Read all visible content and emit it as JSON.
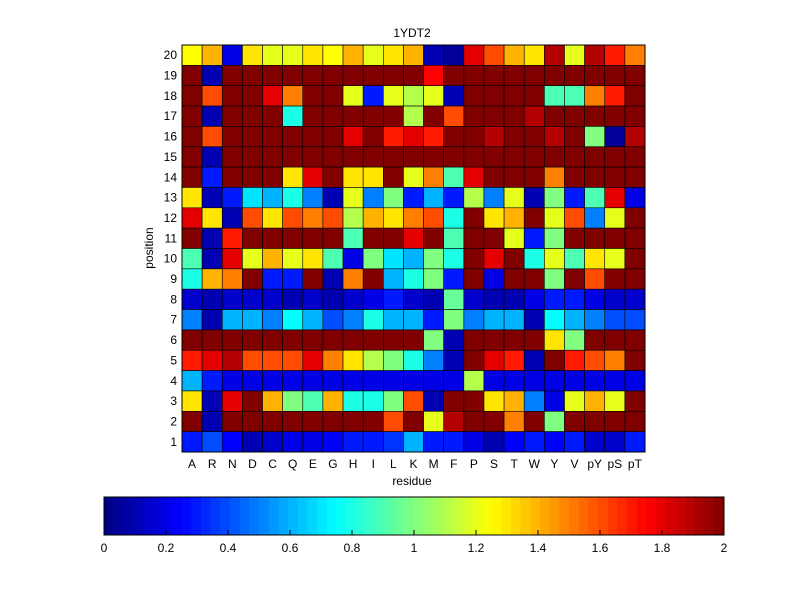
{
  "chart_data": {
    "type": "heatmap",
    "title": "1YDT2",
    "xlabel": "residue",
    "ylabel": "position",
    "x_categories": [
      "A",
      "R",
      "N",
      "D",
      "C",
      "Q",
      "E",
      "G",
      "H",
      "I",
      "L",
      "K",
      "M",
      "F",
      "P",
      "S",
      "T",
      "W",
      "Y",
      "V",
      "pY",
      "pS",
      "pT"
    ],
    "y_categories": [
      "20",
      "19",
      "18",
      "17",
      "16",
      "15",
      "14",
      "13",
      "12",
      "11",
      "10",
      "9",
      "8",
      "7",
      "6",
      "5",
      "4",
      "3",
      "2",
      "1"
    ],
    "colormap": "jet",
    "color_range": [
      0,
      2
    ],
    "colorbar_ticks": [
      "0",
      "0.2",
      "0.4",
      "0.6",
      "0.8",
      "1",
      "1.2",
      "1.4",
      "1.6",
      "1.8",
      "2"
    ],
    "values": [
      [
        1.25,
        1.4,
        0.2,
        1.3,
        1.2,
        1.2,
        1.3,
        1.25,
        1.4,
        1.2,
        1.3,
        1.4,
        0.1,
        0.05,
        1.8,
        1.6,
        1.4,
        1.3,
        1.9,
        1.2,
        1.9,
        1.7,
        1.5
      ],
      [
        2,
        0.1,
        2,
        2,
        2,
        2,
        2,
        2,
        2,
        2,
        2,
        2,
        1.75,
        2,
        2,
        2,
        2,
        2,
        2,
        2,
        2,
        2,
        2
      ],
      [
        2,
        1.6,
        2,
        2,
        1.8,
        1.5,
        2,
        2,
        1.2,
        0.3,
        1.2,
        1.1,
        1.2,
        0.1,
        2,
        2,
        2,
        2,
        0.9,
        0.9,
        1.5,
        1.7,
        2
      ],
      [
        2,
        0.1,
        2,
        2,
        2,
        0.8,
        2,
        2,
        2,
        2,
        2,
        1.1,
        2,
        1.6,
        2,
        2,
        2,
        1.9,
        2,
        2,
        2,
        2,
        2
      ],
      [
        2,
        1.6,
        2,
        2,
        2,
        2,
        2,
        2,
        1.8,
        2,
        1.7,
        1.8,
        1.7,
        2,
        2,
        1.9,
        2,
        2,
        1.9,
        2,
        1.0,
        0.05,
        1.9
      ],
      [
        2,
        0.1,
        2,
        2,
        2,
        2,
        2,
        2,
        2,
        2,
        2,
        2,
        2,
        2,
        2,
        2,
        2,
        2,
        2,
        2,
        2,
        2,
        2
      ],
      [
        2,
        0.3,
        2,
        2,
        2,
        1.3,
        1.8,
        2,
        1.3,
        1.3,
        2,
        1.2,
        1.5,
        0.9,
        1.8,
        2,
        2,
        2,
        1.5,
        2,
        2,
        2,
        2
      ],
      [
        1.3,
        0.1,
        0.3,
        0.7,
        0.6,
        0.8,
        0.5,
        0.1,
        1.2,
        0.5,
        1.0,
        0.3,
        0.6,
        0.3,
        1.1,
        0.5,
        1.2,
        0.1,
        1.0,
        0.3,
        0.9,
        1.8,
        0.2
      ],
      [
        1.8,
        1.3,
        0.1,
        1.6,
        1.3,
        1.6,
        1.5,
        1.6,
        1.1,
        1.4,
        1.3,
        1.5,
        1.6,
        0.8,
        2,
        1.3,
        1.4,
        2,
        1.2,
        1.6,
        0.5,
        1.2,
        2
      ],
      [
        2,
        0.1,
        1.7,
        2,
        2,
        2,
        2,
        2,
        0.9,
        2,
        2,
        1.8,
        2,
        0.9,
        2,
        2,
        1.2,
        0.3,
        1.0,
        2,
        2,
        2,
        2
      ],
      [
        0.9,
        0.1,
        1.8,
        1.2,
        1.4,
        1.2,
        1.3,
        0.9,
        0.2,
        1.0,
        0.7,
        0.6,
        1.0,
        0.8,
        2,
        1.8,
        2,
        0.8,
        1.2,
        0.9,
        1.3,
        1.2,
        2
      ],
      [
        0.8,
        1.4,
        1.5,
        2,
        0.3,
        0.3,
        2,
        0.1,
        1.5,
        2,
        0.6,
        0.8,
        1.0,
        0.3,
        2,
        0.2,
        2,
        2,
        1.0,
        2,
        1.6,
        2,
        2
      ],
      [
        0.15,
        0.1,
        0.15,
        0.15,
        0.15,
        0.1,
        0.15,
        0.1,
        0.15,
        0.2,
        0.3,
        0.15,
        0.1,
        0.95,
        0.15,
        0.1,
        0.1,
        0.2,
        0.3,
        0.3,
        0.2,
        0.15,
        0.15
      ],
      [
        0.5,
        0.1,
        0.6,
        0.6,
        0.5,
        0.75,
        0.6,
        0.4,
        0.5,
        0.8,
        0.6,
        0.6,
        0.3,
        1.0,
        0.5,
        0.6,
        0.6,
        0.1,
        0.75,
        0.6,
        0.5,
        0.4,
        0.4
      ],
      [
        2,
        2,
        2,
        2,
        2,
        2,
        2,
        2,
        2,
        2,
        2,
        2,
        1.0,
        0.1,
        2,
        2,
        2,
        2,
        1.3,
        1.0,
        2,
        2,
        2
      ],
      [
        1.7,
        1.8,
        1.9,
        1.6,
        1.6,
        1.6,
        1.8,
        1.5,
        1.3,
        1.1,
        1.0,
        0.8,
        0.5,
        0.1,
        2,
        1.8,
        1.7,
        0.1,
        2,
        1.7,
        1.6,
        1.5,
        2
      ],
      [
        0.6,
        0.3,
        0.2,
        0.2,
        0.2,
        0.2,
        0.2,
        0.2,
        0.2,
        0.2,
        0.2,
        0.2,
        0.2,
        0.2,
        1.1,
        0.2,
        0.2,
        0.2,
        0.2,
        0.2,
        0.2,
        0.2,
        0.2
      ],
      [
        1.3,
        0.1,
        1.8,
        2,
        1.4,
        1.0,
        0.9,
        1.4,
        0.8,
        0.8,
        1.0,
        1.6,
        0.1,
        2,
        2,
        1.3,
        1.4,
        0.5,
        0.2,
        1.2,
        1.4,
        1.2,
        2
      ],
      [
        2,
        0.1,
        2,
        2,
        2,
        2,
        2,
        2,
        2,
        2,
        1.6,
        2,
        1.2,
        1.9,
        2,
        2,
        1.5,
        2,
        1.0,
        2,
        2,
        2,
        2
      ],
      [
        0.3,
        0.4,
        0.25,
        0.1,
        0.15,
        0.2,
        0.2,
        0.25,
        0.3,
        0.3,
        0.35,
        0.6,
        0.3,
        0.3,
        0.2,
        0.1,
        0.25,
        0.3,
        0.25,
        0.3,
        0.15,
        0.15,
        0.3
      ]
    ]
  }
}
